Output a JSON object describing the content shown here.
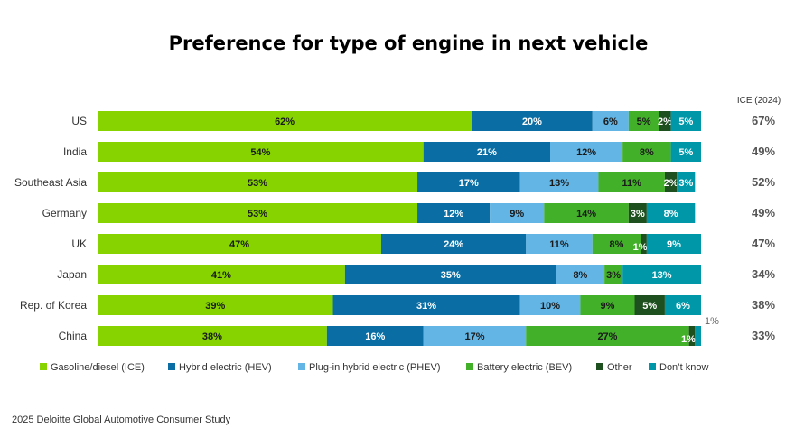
{
  "title": "Preference for type of engine in next vehicle",
  "footer": "2025 Deloitte Global Automotive Consumer Study",
  "chart_data": {
    "type": "bar",
    "orientation": "horizontal",
    "stacked": true,
    "title": "Preference for type of engine in next vehicle",
    "categories": [
      "US",
      "India",
      "Southeast Asia",
      "Germany",
      "UK",
      "Japan",
      "Rep. of Korea",
      "China"
    ],
    "series": [
      {
        "name": "Gasoline/diesel (ICE)",
        "color": "#86d300",
        "label_color": "#1a1a1a",
        "values": [
          62,
          54,
          53,
          53,
          47,
          41,
          39,
          38
        ]
      },
      {
        "name": "Hybrid electric (HEV)",
        "color": "#0a6ea4",
        "label_color": "#ffffff",
        "values": [
          20,
          21,
          17,
          12,
          24,
          35,
          31,
          16
        ]
      },
      {
        "name": "Plug-in hybrid electric (PHEV)",
        "color": "#62b5e5",
        "label_color": "#1a1a1a",
        "values": [
          6,
          12,
          13,
          9,
          11,
          8,
          10,
          17
        ]
      },
      {
        "name": "Battery electric (BEV)",
        "color": "#43b02a",
        "label_color": "#1a1a1a",
        "values": [
          5,
          8,
          11,
          14,
          8,
          3,
          9,
          27
        ]
      },
      {
        "name": "Other",
        "color": "#1e4f1e",
        "label_color": "#ffffff",
        "values": [
          2,
          0,
          2,
          3,
          1,
          0,
          5,
          1
        ]
      },
      {
        "name": "Don’t know",
        "color": "#0097a9",
        "label_color": "#ffffff",
        "values": [
          5,
          5,
          3,
          8,
          9,
          13,
          6,
          1
        ]
      }
    ],
    "data_labels": [
      [
        "62%",
        "20%",
        "6%",
        "5%",
        "2%",
        "5%"
      ],
      [
        "54%",
        "21%",
        "12%",
        "8%",
        "",
        "5%"
      ],
      [
        "53%",
        "17%",
        "13%",
        "11%",
        "2%",
        "3%"
      ],
      [
        "53%",
        "12%",
        "9%",
        "14%",
        "3%",
        "8%"
      ],
      [
        "47%",
        "24%",
        "11%",
        "8%",
        "1%",
        "9%"
      ],
      [
        "41%",
        "35%",
        "8%",
        "3%",
        "",
        "13%"
      ],
      [
        "39%",
        "31%",
        "10%",
        "9%",
        "5%",
        "6%"
      ],
      [
        "38%",
        "16%",
        "17%",
        "27%",
        "1%",
        "1%"
      ]
    ],
    "side_column": {
      "header": "ICE (2024)",
      "values": [
        "67%",
        "49%",
        "52%",
        "49%",
        "47%",
        "34%",
        "38%",
        "33%"
      ]
    },
    "legend_position": "bottom",
    "grid": false,
    "xlim": [
      0,
      100
    ]
  }
}
